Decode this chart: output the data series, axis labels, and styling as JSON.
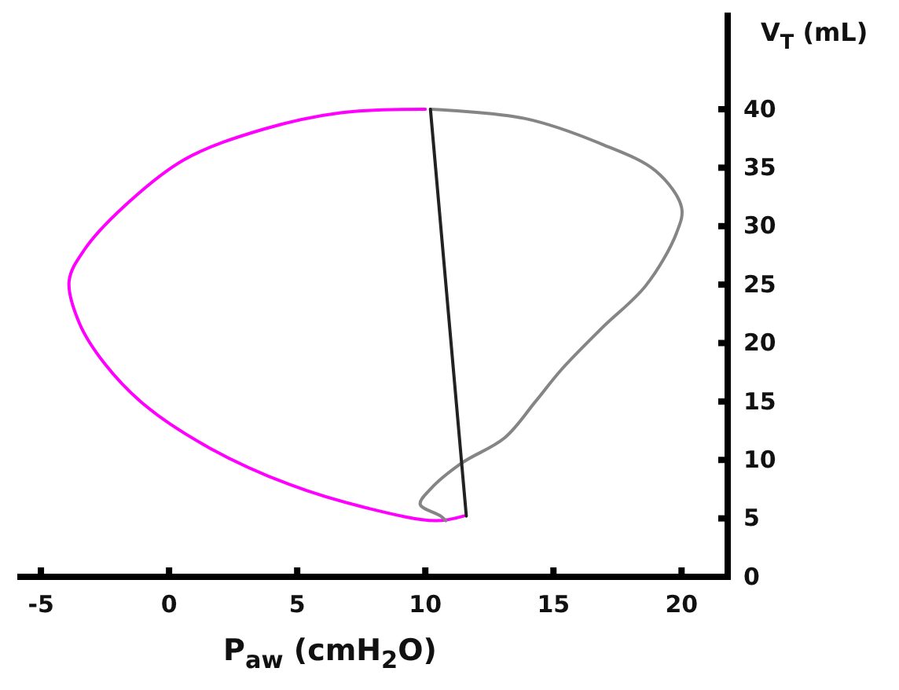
{
  "chart_data": {
    "type": "line",
    "xlabel": "P$_{aw}$  (cmH$_{2}$O)",
    "ylabel": "V$_{T}$  (mL)",
    "xlim": [
      -5.8,
      21.8
    ],
    "ylim": [
      0,
      48
    ],
    "xticks": [
      -5,
      0,
      5,
      10,
      15,
      20
    ],
    "yticks": [
      0,
      5,
      10,
      15,
      20,
      25,
      30,
      35,
      40
    ],
    "grid": false,
    "marker": "none",
    "line_style": "solid",
    "series": [
      {
        "color": "#ff00ff",
        "x": [
          10.0,
          6.7,
          3.7,
          0.6,
          -1.8,
          -3.3,
          -3.9,
          -3.5,
          -2.5,
          -0.9,
          1.6,
          4.7,
          7.7,
          10.4,
          11.5
        ],
        "values": [
          40,
          39.7,
          38.3,
          35.7,
          31.6,
          28.0,
          25.3,
          21.7,
          18.2,
          14.6,
          11.0,
          7.9,
          5.9,
          4.8,
          5.2
        ]
      },
      {
        "color": "#858585",
        "x": [
          10.2,
          13.9,
          16.9,
          19.0,
          20.0,
          19.8,
          18.6,
          16.9,
          15.3,
          14.3,
          13.1,
          11.4,
          10.2,
          9.8,
          10.6,
          10.8
        ],
        "values": [
          40,
          39.2,
          37.0,
          34.7,
          31.6,
          29.4,
          24.9,
          21.3,
          17.7,
          15.0,
          11.9,
          9.7,
          7.5,
          6.2,
          5.2,
          4.8
        ]
      },
      {
        "color": "#222222",
        "x": [
          10.2,
          11.6
        ],
        "values": [
          40,
          5.2
        ]
      }
    ]
  }
}
